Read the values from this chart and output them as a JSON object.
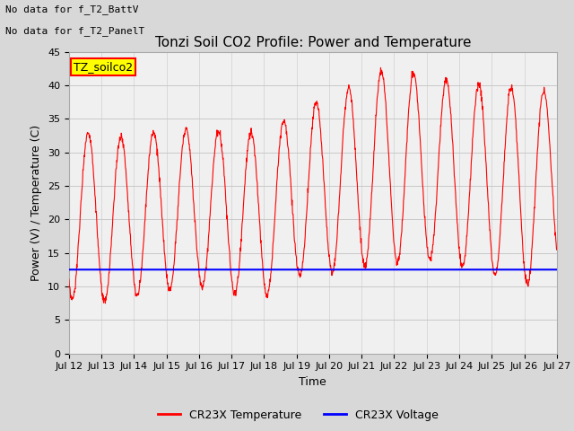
{
  "title": "Tonzi Soil CO2 Profile: Power and Temperature",
  "xlabel": "Time",
  "ylabel": "Power (V) / Temperature (C)",
  "ylim": [
    0,
    45
  ],
  "yticks": [
    0,
    5,
    10,
    15,
    20,
    25,
    30,
    35,
    40,
    45
  ],
  "x_labels": [
    "Jul 12",
    "Jul 13",
    "Jul 14",
    "Jul 15",
    "Jul 16",
    "Jul 17",
    "Jul 18",
    "Jul 19",
    "Jul 20",
    "Jul 21",
    "Jul 22",
    "Jul 23",
    "Jul 24",
    "Jul 25",
    "Jul 26",
    "Jul 27"
  ],
  "temp_color": "#ff0000",
  "voltage_color": "#0000ff",
  "voltage_value": 12.5,
  "legend_label_temp": "CR23X Temperature",
  "legend_label_voltage": "CR23X Voltage",
  "annotation_text1": "No data for f_T2_BattV",
  "annotation_text2": "No data for f_T2_PanelT",
  "legend_box_label": "TZ_soilco2",
  "legend_box_color": "#ffff00",
  "legend_box_edge": "#ff0000",
  "background_color": "#d8d8d8",
  "plot_bg_color": "#f0f0f0",
  "grid_color": "#c8c8c8",
  "n_days": 15,
  "peak_temps": [
    34.5,
    32.0,
    32.5,
    33.5,
    33.5,
    33.0,
    33.0,
    36.0,
    38.5,
    40.5,
    43.0,
    41.0,
    40.5,
    40.0,
    39.5,
    39.0
  ],
  "trough_temps": [
    8.0,
    7.5,
    8.5,
    9.5,
    10.0,
    9.0,
    8.5,
    11.5,
    12.0,
    13.0,
    13.5,
    14.0,
    13.0,
    12.0,
    10.0,
    13.0
  ]
}
